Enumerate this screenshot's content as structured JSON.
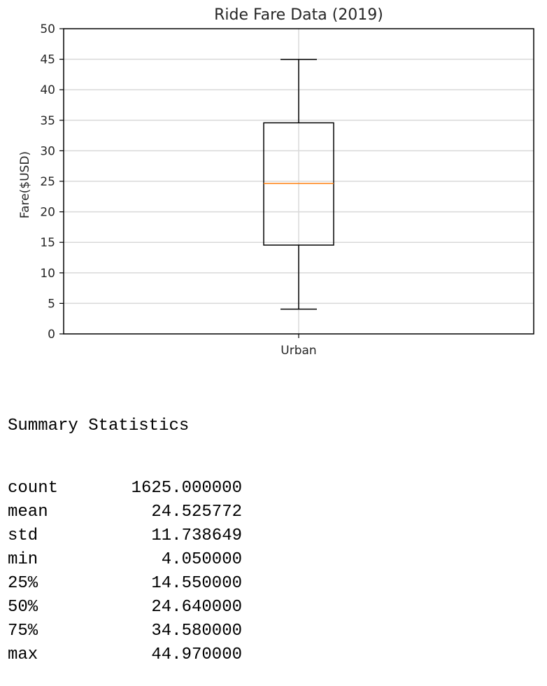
{
  "chart_data": {
    "type": "box",
    "title": "Ride Fare Data (2019)",
    "xlabel": "",
    "ylabel": "Fare($USD)",
    "ylim": [
      0,
      50
    ],
    "yticks": [
      0,
      5,
      10,
      15,
      20,
      25,
      30,
      35,
      40,
      45,
      50
    ],
    "grid": true,
    "categories": [
      "Urban"
    ],
    "boxes": [
      {
        "category": "Urban",
        "min": 4.05,
        "q1": 14.55,
        "median": 24.64,
        "q3": 34.58,
        "max": 44.97
      }
    ],
    "colors": {
      "box": "#000000",
      "median": "#ff7f0e",
      "grid": "#d9d9d9"
    }
  },
  "summary": {
    "heading": "Summary Statistics",
    "rows": [
      {
        "label": "count",
        "value": "1625.000000"
      },
      {
        "label": "mean",
        "value": "24.525772"
      },
      {
        "label": "std",
        "value": "11.738649"
      },
      {
        "label": "min",
        "value": "4.050000"
      },
      {
        "label": "25%",
        "value": "14.550000"
      },
      {
        "label": "50%",
        "value": "24.640000"
      },
      {
        "label": "75%",
        "value": "34.580000"
      },
      {
        "label": "max",
        "value": "44.970000"
      }
    ]
  }
}
